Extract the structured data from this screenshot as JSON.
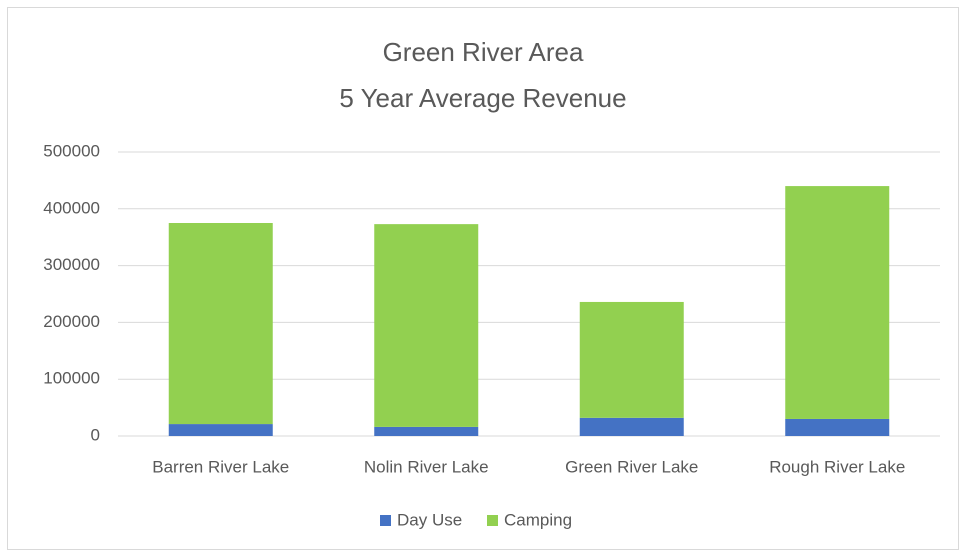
{
  "chart_data": {
    "type": "stacked_bar",
    "title": [
      "Green River Area",
      "5 Year Average Revenue"
    ],
    "categories": [
      "Barren River Lake",
      "Nolin River Lake",
      "Green River Lake",
      "Rough River Lake"
    ],
    "series": [
      {
        "name": "Day Use",
        "color": "#4472c4",
        "values": [
          21000,
          16000,
          32000,
          30000
        ]
      },
      {
        "name": "Camping",
        "color": "#92d050",
        "values": [
          354000,
          357000,
          204000,
          410000
        ]
      }
    ],
    "ylim": [
      0,
      500000
    ],
    "yticks": [
      0,
      100000,
      200000,
      300000,
      400000,
      500000
    ],
    "grid": true,
    "legend": "bottom"
  }
}
